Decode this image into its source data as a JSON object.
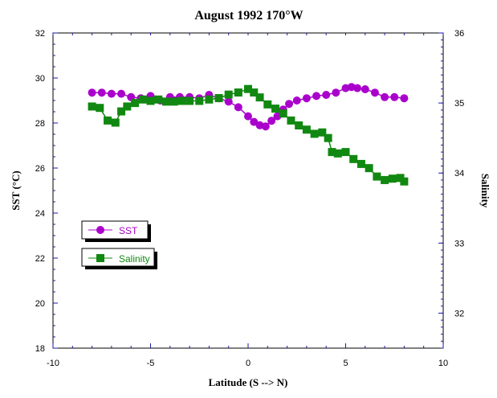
{
  "chart_data": {
    "type": "line",
    "title": "August 1992 170°W",
    "xlabel": "Latitude  (S --> N)",
    "ylabel_left": "SST (°C)",
    "ylabel_right": "Salinity",
    "xlim": [
      -10,
      10
    ],
    "xticks": [
      -10,
      -5,
      0,
      5,
      10
    ],
    "ylim_left": [
      18,
      32
    ],
    "yticks_left": [
      18,
      20,
      22,
      24,
      26,
      28,
      30,
      32
    ],
    "ylim_right": [
      31.5,
      36
    ],
    "yticks_right": [
      32,
      33,
      34,
      35,
      36
    ],
    "grid": false,
    "legend_position": "left-middle",
    "series": [
      {
        "name": "SST",
        "axis": "left",
        "color": "#aa00cc",
        "marker": "circle",
        "x": [
          -8.0,
          -7.5,
          -7.0,
          -6.5,
          -6.0,
          -5.5,
          -5.0,
          -4.5,
          -4.0,
          -3.5,
          -3.0,
          -2.5,
          -2.0,
          -1.5,
          -1.0,
          -0.5,
          0.0,
          0.3,
          0.6,
          0.9,
          1.2,
          1.5,
          1.8,
          2.1,
          2.5,
          3.0,
          3.5,
          4.0,
          4.5,
          5.0,
          5.3,
          5.6,
          6.0,
          6.5,
          7.0,
          7.5,
          8.0
        ],
        "y": [
          29.35,
          29.35,
          29.3,
          29.3,
          29.15,
          29.1,
          29.2,
          29.0,
          29.15,
          29.15,
          29.15,
          29.1,
          29.25,
          29.1,
          28.95,
          28.7,
          28.3,
          28.05,
          27.9,
          27.85,
          28.1,
          28.3,
          28.6,
          28.85,
          29.0,
          29.1,
          29.2,
          29.25,
          29.35,
          29.55,
          29.6,
          29.55,
          29.5,
          29.35,
          29.15,
          29.15,
          29.1
        ]
      },
      {
        "name": "Salinity",
        "axis": "right",
        "color": "#118811",
        "marker": "square",
        "x": [
          -8.0,
          -7.6,
          -7.2,
          -6.8,
          -6.5,
          -6.2,
          -5.8,
          -5.4,
          -5.0,
          -4.6,
          -4.2,
          -3.8,
          -3.4,
          -3.0,
          -2.5,
          -2.0,
          -1.5,
          -1.0,
          -0.5,
          0.0,
          0.3,
          0.6,
          1.0,
          1.4,
          1.8,
          2.2,
          2.6,
          3.0,
          3.4,
          3.8,
          4.1,
          4.3,
          4.6,
          5.0,
          5.4,
          5.8,
          6.2,
          6.6,
          7.0,
          7.4,
          7.8,
          8.0
        ],
        "y": [
          34.95,
          34.93,
          34.75,
          34.72,
          34.88,
          34.95,
          35.0,
          35.05,
          35.03,
          35.05,
          35.02,
          35.02,
          35.03,
          35.03,
          35.03,
          35.05,
          35.07,
          35.12,
          35.15,
          35.2,
          35.15,
          35.08,
          34.98,
          34.92,
          34.85,
          34.75,
          34.68,
          34.62,
          34.56,
          34.58,
          34.5,
          34.3,
          34.28,
          34.3,
          34.2,
          34.13,
          34.07,
          33.95,
          33.9,
          33.92,
          33.93,
          33.88
        ]
      }
    ]
  }
}
